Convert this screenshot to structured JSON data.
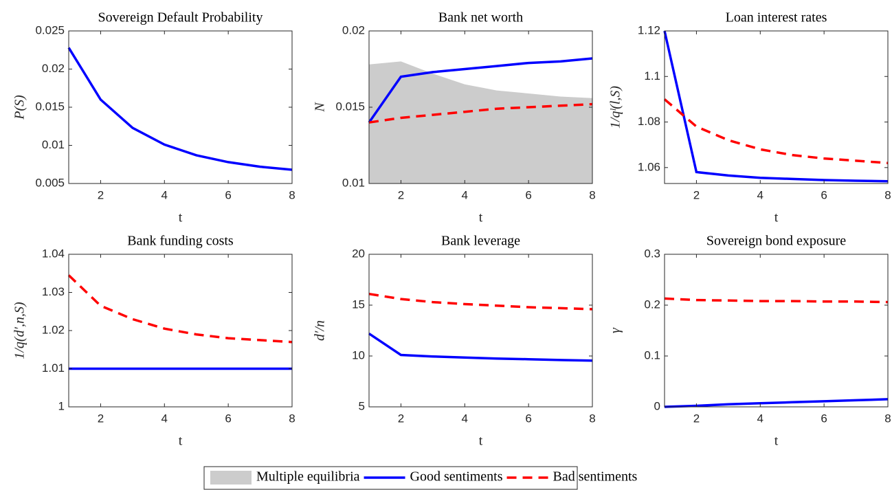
{
  "chart_data": [
    {
      "type": "line",
      "title": "Sovereign Default Probability",
      "xlabel": "t",
      "ylabel": "P(S)",
      "x": [
        1,
        2,
        3,
        4,
        5,
        6,
        7,
        8
      ],
      "xlim": [
        1,
        8
      ],
      "xticks": [
        2,
        4,
        6,
        8
      ],
      "ylim": [
        0.005,
        0.025
      ],
      "yticks": [
        0.005,
        0.01,
        0.015,
        0.02,
        0.025
      ],
      "series": [
        {
          "color": "#0000ff",
          "style": "solid",
          "values": [
            0.0228,
            0.016,
            0.0123,
            0.0101,
            0.0087,
            0.0078,
            0.0072,
            0.0068
          ]
        }
      ]
    },
    {
      "type": "line",
      "title": "Bank net worth",
      "xlabel": "t",
      "ylabel": "N",
      "x": [
        1,
        2,
        3,
        4,
        5,
        6,
        7,
        8
      ],
      "xlim": [
        1,
        8
      ],
      "xticks": [
        2,
        4,
        6,
        8
      ],
      "ylim": [
        0.01,
        0.02
      ],
      "yticks": [
        0.01,
        0.015,
        0.02
      ],
      "series": [
        {
          "name": "Multiple equilibria",
          "color": "#cccccc",
          "style": "area",
          "values": [
            0.0178,
            0.018,
            0.0172,
            0.0165,
            0.0161,
            0.0159,
            0.0157,
            0.0156
          ]
        },
        {
          "name": "Good sentiments",
          "color": "#0000ff",
          "style": "solid",
          "values": [
            0.014,
            0.017,
            0.0173,
            0.0175,
            0.0177,
            0.0179,
            0.018,
            0.0182
          ]
        },
        {
          "name": "Bad sentiments",
          "color": "#ff0000",
          "style": "dashed",
          "values": [
            0.014,
            0.0143,
            0.0145,
            0.0147,
            0.0149,
            0.015,
            0.0151,
            0.0152
          ]
        }
      ]
    },
    {
      "type": "line",
      "title": "Loan interest rates",
      "xlabel": "t",
      "ylabel": "1/qˡ(l,S)",
      "x": [
        1,
        2,
        3,
        4,
        5,
        6,
        7,
        8
      ],
      "xlim": [
        1,
        8
      ],
      "xticks": [
        2,
        4,
        6,
        8
      ],
      "ylim": [
        1.053,
        1.12
      ],
      "yticks": [
        1.06,
        1.08,
        1.1,
        1.12
      ],
      "series": [
        {
          "color": "#0000ff",
          "style": "solid",
          "values": [
            1.12,
            1.058,
            1.0565,
            1.0555,
            1.055,
            1.0545,
            1.0542,
            1.054
          ]
        },
        {
          "color": "#ff0000",
          "style": "dashed",
          "values": [
            1.09,
            1.078,
            1.072,
            1.068,
            1.0655,
            1.064,
            1.063,
            1.062
          ]
        }
      ]
    },
    {
      "type": "line",
      "title": "Bank funding costs",
      "xlabel": "t",
      "ylabel": "1/q(d′,n,S)",
      "x": [
        1,
        2,
        3,
        4,
        5,
        6,
        7,
        8
      ],
      "xlim": [
        1,
        8
      ],
      "xticks": [
        2,
        4,
        6,
        8
      ],
      "ylim": [
        1,
        1.04
      ],
      "yticks": [
        1,
        1.01,
        1.02,
        1.03,
        1.04
      ],
      "series": [
        {
          "color": "#0000ff",
          "style": "solid",
          "values": [
            1.01,
            1.01,
            1.01,
            1.01,
            1.01,
            1.01,
            1.01,
            1.01
          ]
        },
        {
          "color": "#ff0000",
          "style": "dashed",
          "values": [
            1.0345,
            1.0265,
            1.023,
            1.0205,
            1.019,
            1.018,
            1.0175,
            1.017
          ]
        }
      ]
    },
    {
      "type": "line",
      "title": "Bank leverage",
      "xlabel": "t",
      "ylabel": "d′/n",
      "x": [
        1,
        2,
        3,
        4,
        5,
        6,
        7,
        8
      ],
      "xlim": [
        1,
        8
      ],
      "xticks": [
        2,
        4,
        6,
        8
      ],
      "ylim": [
        5,
        20
      ],
      "yticks": [
        5,
        10,
        15,
        20
      ],
      "series": [
        {
          "color": "#0000ff",
          "style": "solid",
          "values": [
            12.2,
            10.1,
            9.95,
            9.85,
            9.75,
            9.68,
            9.6,
            9.55
          ]
        },
        {
          "color": "#ff0000",
          "style": "dashed",
          "values": [
            16.1,
            15.6,
            15.3,
            15.1,
            14.95,
            14.8,
            14.7,
            14.6
          ]
        }
      ]
    },
    {
      "type": "line",
      "title": "Sovereign bond exposure",
      "xlabel": "t",
      "ylabel": "γ",
      "x": [
        1,
        2,
        3,
        4,
        5,
        6,
        7,
        8
      ],
      "xlim": [
        1,
        8
      ],
      "xticks": [
        2,
        4,
        6,
        8
      ],
      "ylim": [
        0,
        0.3
      ],
      "yticks": [
        0,
        0.1,
        0.2,
        0.3
      ],
      "series": [
        {
          "color": "#0000ff",
          "style": "solid",
          "values": [
            0,
            0.002,
            0.005,
            0.007,
            0.009,
            0.011,
            0.013,
            0.015
          ]
        },
        {
          "color": "#ff0000",
          "style": "dashed",
          "values": [
            0.213,
            0.21,
            0.209,
            0.208,
            0.208,
            0.207,
            0.207,
            0.206
          ]
        }
      ]
    }
  ]
}
